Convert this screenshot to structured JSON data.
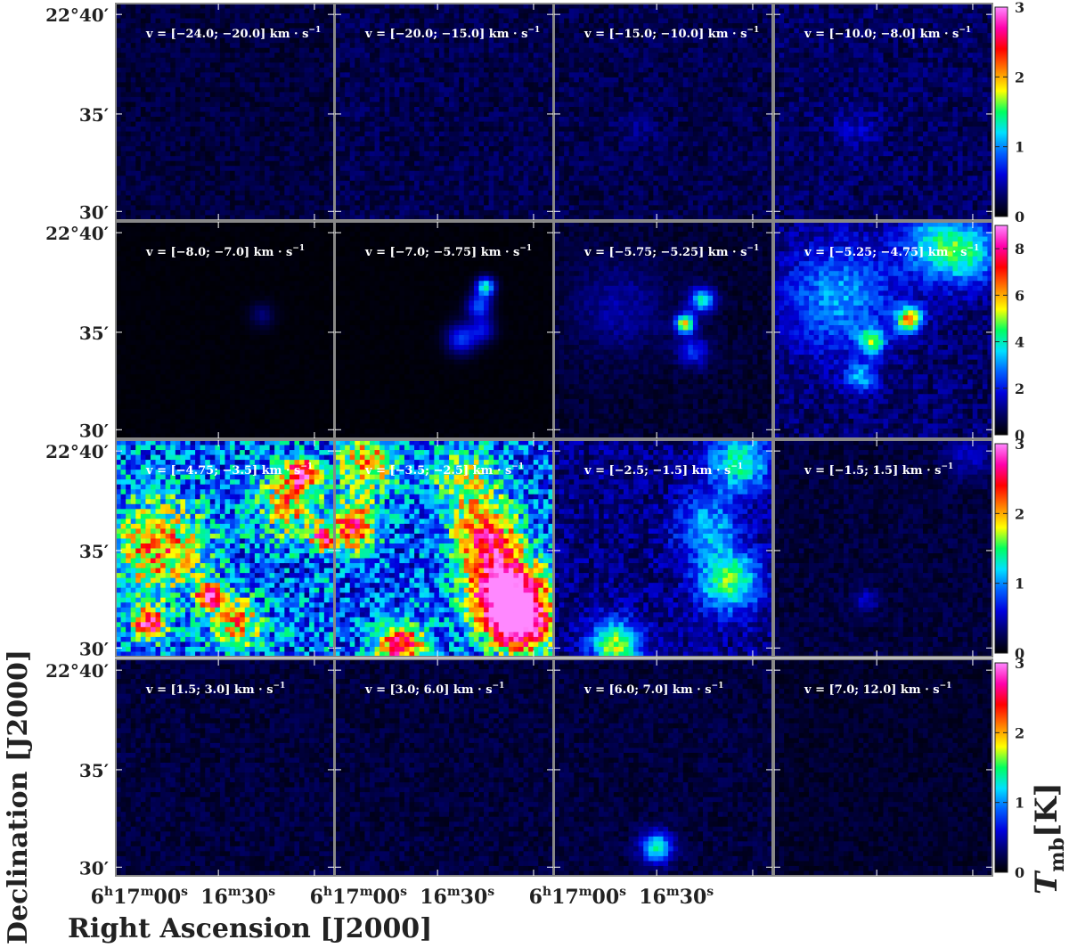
{
  "chart_data": {
    "type": "heatmap",
    "description": "Channel maps of main-beam temperature in 16 velocity intervals",
    "xlabel": "Right Ascension [J2000]",
    "ylabel": "Declination [J2000]",
    "colorbar_label": "T_mb [K]",
    "colorbar_label_main": "T",
    "colorbar_label_sub": "mb",
    "colorbar_label_unit": "[K]",
    "colormap": [
      "#000000",
      "#000066",
      "#0000dd",
      "#0060ff",
      "#00e0ff",
      "#00ff60",
      "#ffff00",
      "#ff8000",
      "#ff0000",
      "#ff00aa",
      "#ff88ff"
    ],
    "x_ticks": [
      "6h17m00s",
      "16m30s"
    ],
    "x_tick_parts": [
      {
        "h": "6",
        "hs": "h",
        "m": "17",
        "ms": "m",
        "s": "00",
        "ss": "s"
      },
      {
        "h": "",
        "hs": "",
        "m": "16",
        "ms": "m",
        "s": "30",
        "ss": "s"
      }
    ],
    "y_ticks": [
      "22°40′",
      "35′",
      "30′"
    ],
    "ra_range": [
      "6h17m07s",
      "6h16m14s"
    ],
    "dec_range": [
      "22°29.5′",
      "22°41′"
    ],
    "rows": [
      {
        "colorbar_range": [
          0,
          3
        ],
        "colorbar_ticks": [
          "0",
          "1",
          "2",
          "3"
        ]
      },
      {
        "colorbar_range": [
          0,
          9
        ],
        "colorbar_ticks": [
          "0",
          "2",
          "4",
          "6",
          "8"
        ]
      },
      {
        "colorbar_range": [
          0,
          3
        ],
        "colorbar_ticks": [
          "0",
          "1",
          "2",
          "3"
        ]
      },
      {
        "colorbar_range": [
          0,
          3
        ],
        "colorbar_ticks": [
          "0",
          "1",
          "2",
          "3"
        ]
      }
    ],
    "panels": [
      {
        "label": "v = [−24.0; −20.0] km · s",
        "velocity_range_kms": [
          -24.0,
          -20.0
        ],
        "background_level_K": 0.2
      },
      {
        "label": "v = [−20.0; −15.0] km · s",
        "velocity_range_kms": [
          -20.0,
          -15.0
        ],
        "background_level_K": 0.25
      },
      {
        "label": "v = [−15.0; −10.0] km · s",
        "velocity_range_kms": [
          -15.0,
          -10.0
        ],
        "background_level_K": 0.25
      },
      {
        "label": "v = [−10.0; −8.0] km · s",
        "velocity_range_kms": [
          -10.0,
          -8.0
        ],
        "background_level_K": 0.3
      },
      {
        "label": "v = [−8.0; −7.0] km · s",
        "velocity_range_kms": [
          -8.0,
          -7.0
        ],
        "background_level_K": 0.1
      },
      {
        "label": "v = [−7.0; −5.75] km · s",
        "velocity_range_kms": [
          -7.0,
          -5.75
        ],
        "background_level_K": 0.1
      },
      {
        "label": "v = [−5.75; −5.25] km · s",
        "velocity_range_kms": [
          -5.75,
          -5.25
        ],
        "background_level_K": 0.5
      },
      {
        "label": "v = [−5.25; −4.75] km · s",
        "velocity_range_kms": [
          -5.25,
          -4.75
        ],
        "background_level_K": 1.0
      },
      {
        "label": "v = [−4.75; −3.5] km · s",
        "velocity_range_kms": [
          -4.75,
          -3.5
        ],
        "background_level_K": 1.0
      },
      {
        "label": "v = [−3.5; −2.5] km · s",
        "velocity_range_kms": [
          -3.5,
          -2.5
        ],
        "background_level_K": 0.9
      },
      {
        "label": "v = [−2.5; −1.5] km · s",
        "velocity_range_kms": [
          -2.5,
          -1.5
        ],
        "background_level_K": 0.4
      },
      {
        "label": "v = [−1.5; 1.5] km · s",
        "velocity_range_kms": [
          -1.5,
          1.5
        ],
        "background_level_K": 0.2
      },
      {
        "label": "v = [1.5; 3.0] km · s",
        "velocity_range_kms": [
          1.5,
          3.0
        ],
        "background_level_K": 0.2
      },
      {
        "label": "v = [3.0; 6.0] km · s",
        "velocity_range_kms": [
          3.0,
          6.0
        ],
        "background_level_K": 0.2
      },
      {
        "label": "v = [6.0; 7.0] km · s",
        "velocity_range_kms": [
          6.0,
          7.0
        ],
        "background_level_K": 0.2
      },
      {
        "label": "v = [7.0; 12.0] km · s",
        "velocity_range_kms": [
          7.0,
          12.0
        ],
        "background_level_K": 0.15
      }
    ],
    "unit_superscript": "−1"
  }
}
